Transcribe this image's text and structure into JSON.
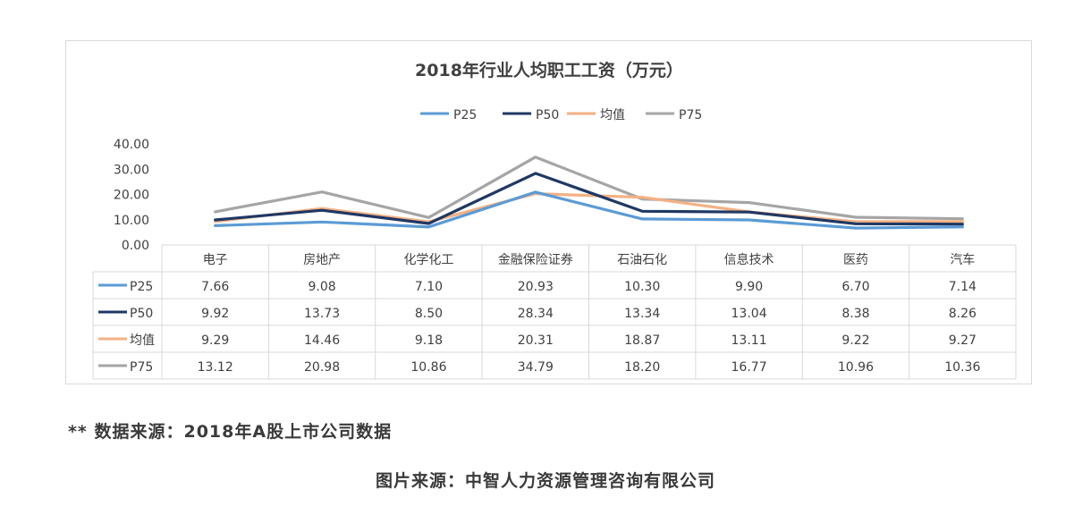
{
  "chart_data": {
    "type": "line",
    "title": "2018年行业人均职工工资（万元）",
    "categories": [
      "电子",
      "房地产",
      "化学化工",
      "金融保险证券",
      "石油石化",
      "信息技术",
      "医药",
      "汽车"
    ],
    "series": [
      {
        "name": "P25",
        "color": "#5b9bd5",
        "values": [
          7.66,
          9.08,
          7.1,
          20.93,
          10.3,
          9.9,
          6.7,
          7.14
        ]
      },
      {
        "name": "P50",
        "color": "#1f3864",
        "values": [
          9.92,
          13.73,
          8.5,
          28.34,
          13.34,
          13.04,
          8.38,
          8.26
        ]
      },
      {
        "name": "均值",
        "color": "#f4b183",
        "values": [
          9.29,
          14.46,
          9.18,
          20.31,
          18.87,
          13.11,
          9.22,
          9.27
        ]
      },
      {
        "name": "P75",
        "color": "#a5a5a5",
        "values": [
          13.12,
          20.98,
          10.86,
          34.79,
          18.2,
          16.77,
          10.96,
          10.36
        ]
      }
    ],
    "ylim": [
      0,
      40
    ],
    "yticks": [
      "0.00",
      "10.00",
      "20.00",
      "30.00",
      "40.00"
    ],
    "table_values": [
      [
        "7.66",
        "9.08",
        "7.10",
        "20.93",
        "10.30",
        "9.90",
        "6.70",
        "7.14"
      ],
      [
        "9.92",
        "13.73",
        "8.50",
        "28.34",
        "13.34",
        "13.04",
        "8.38",
        "8.26"
      ],
      [
        "9.29",
        "14.46",
        "9.18",
        "20.31",
        "18.87",
        "13.11",
        "9.22",
        "9.27"
      ],
      [
        "13.12",
        "20.98",
        "10.86",
        "34.79",
        "18.20",
        "16.77",
        "10.96",
        "10.36"
      ]
    ],
    "legend_position": "top-center",
    "data_table": true
  },
  "footnotes": {
    "source": "** 数据来源：2018年A股上市公司数据",
    "credit": "图片来源：中智人力资源管理咨询有限公司"
  }
}
